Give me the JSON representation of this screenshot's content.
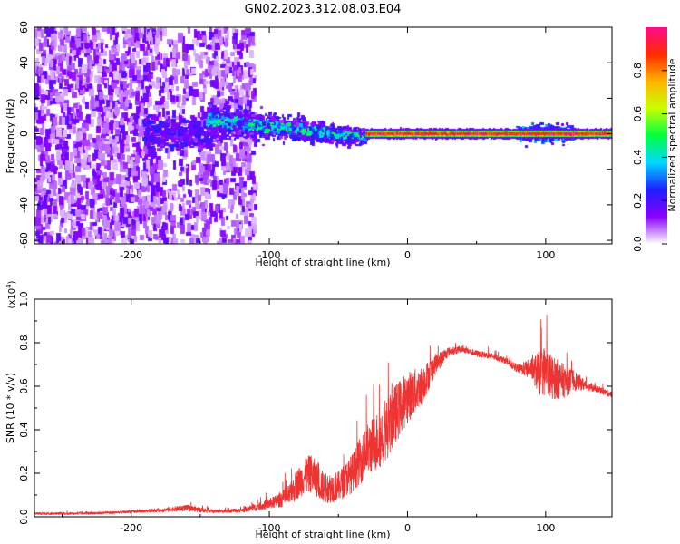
{
  "figure_title": "GN02.2023.312.08.03.E04",
  "chart_data": [
    {
      "type": "heatmap",
      "title": "GN02.2023.312.08.03.E04",
      "xlabel": "Height of straight line (km)",
      "ylabel": "Frequency (Hz)",
      "xlim": [
        -270,
        148
      ],
      "ylim": [
        -62,
        60
      ],
      "x_ticks": [
        -200,
        -100,
        0,
        100
      ],
      "x_tick_labels": [
        "-200",
        "-100",
        "0",
        "100"
      ],
      "y_ticks": [
        -60,
        -40,
        -20,
        0,
        20,
        40,
        60
      ],
      "y_tick_labels": [
        "-60",
        "-40",
        "-20",
        "0",
        "20",
        "40",
        "60"
      ],
      "colorbar": {
        "label": "Normalized spectral amplitude",
        "range": [
          0,
          1
        ],
        "ticks": [
          0.0,
          0.2,
          0.4,
          0.6,
          0.8
        ],
        "tick_labels": [
          "0.0",
          "0.2",
          "0.4",
          "0.6",
          "0.8"
        ],
        "colors": [
          "#ffffff",
          "#8a00ff",
          "#1e1eff",
          "#00d8ff",
          "#00ff40",
          "#c8ff00",
          "#ffb400",
          "#ff2a00",
          "#ff0a8c"
        ]
      },
      "regions": [
        {
          "x_range": [
            -270,
            -110
          ],
          "freq_range": [
            -62,
            60
          ],
          "amplitude": 0.05,
          "pattern": "broadband noise"
        },
        {
          "x_range": [
            -190,
            -140
          ],
          "freq_range": [
            -8,
            10
          ],
          "amplitude": 0.15,
          "pattern": "blob"
        },
        {
          "x_range": [
            -145,
            -30
          ],
          "freq_range": [
            -12,
            16
          ],
          "amplitude": 0.35,
          "pattern": "narrowing band, center sloping from 8 Hz to -2 Hz"
        },
        {
          "x_range": [
            -30,
            148
          ],
          "freq_range": [
            -3,
            3
          ],
          "amplitude": 0.85,
          "pattern": "narrow line near 0 Hz"
        },
        {
          "x_range": [
            80,
            120
          ],
          "freq_range": [
            -5,
            5
          ],
          "amplitude": 0.3,
          "pattern": "widened line"
        }
      ]
    },
    {
      "type": "line",
      "xlabel": "Height of straight line (km)",
      "ylabel": "SNR (10 * v/v)",
      "y_multiplier": "(x10",
      "y_multiplier_exp": "4",
      "y_multiplier_close": ")",
      "xlim": [
        -270,
        148
      ],
      "ylim": [
        0,
        1.0
      ],
      "x_ticks": [
        -200,
        -100,
        0,
        100
      ],
      "x_tick_labels": [
        "-200",
        "-100",
        "0",
        "100"
      ],
      "y_ticks": [
        0.0,
        0.2,
        0.4,
        0.6,
        0.8,
        1.0
      ],
      "y_tick_labels": [
        "0.0",
        "0.2",
        "0.4",
        "0.6",
        "0.8",
        "1.0"
      ],
      "line_color": "#ee3333",
      "series": [
        {
          "x": [
            -270,
            -240,
            -210,
            -180,
            -160,
            -140,
            -120,
            -105,
            -95,
            -85,
            -80,
            -75,
            -70,
            -60,
            -50,
            -40,
            -30,
            -20,
            -15,
            -10,
            0,
            10,
            20,
            30,
            40,
            50,
            60,
            70,
            80,
            90,
            95,
            100,
            105,
            110,
            115,
            120,
            130,
            140,
            148
          ],
          "y": [
            0.015,
            0.015,
            0.02,
            0.03,
            0.04,
            0.025,
            0.03,
            0.05,
            0.07,
            0.1,
            0.15,
            0.18,
            0.2,
            0.13,
            0.14,
            0.2,
            0.3,
            0.36,
            0.4,
            0.46,
            0.55,
            0.6,
            0.7,
            0.76,
            0.77,
            0.75,
            0.74,
            0.72,
            0.68,
            0.68,
            0.66,
            0.67,
            0.64,
            0.63,
            0.62,
            0.63,
            0.6,
            0.58,
            0.56
          ],
          "noise": [
            0.005,
            0.005,
            0.006,
            0.008,
            0.015,
            0.008,
            0.01,
            0.02,
            0.03,
            0.05,
            0.07,
            0.08,
            0.09,
            0.07,
            0.07,
            0.09,
            0.12,
            0.14,
            0.14,
            0.14,
            0.12,
            0.09,
            0.05,
            0.02,
            0.015,
            0.015,
            0.015,
            0.015,
            0.02,
            0.05,
            0.1,
            0.12,
            0.1,
            0.09,
            0.07,
            0.05,
            0.02,
            0.015,
            0.015
          ]
        }
      ]
    }
  ]
}
